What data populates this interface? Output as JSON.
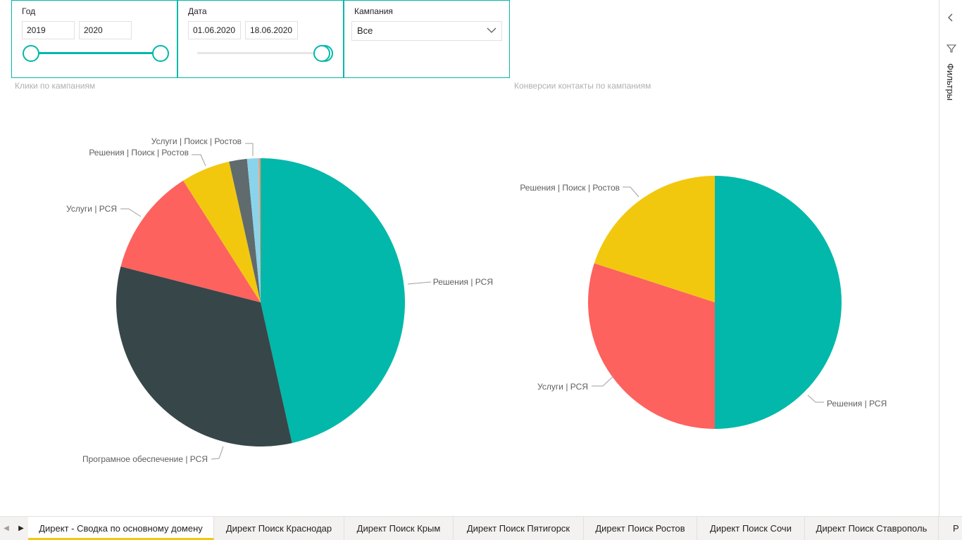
{
  "slicers": {
    "year": {
      "title": "Год",
      "from": "2019",
      "to": "2020"
    },
    "date": {
      "title": "Дата",
      "from": "01.06.2020",
      "to": "18.06.2020"
    },
    "campaign": {
      "title": "Кампания",
      "value": "Все"
    }
  },
  "filters_pane": {
    "label": "Фильтры"
  },
  "tabs": [
    {
      "label": "Директ - Сводка по основному домену",
      "active": true
    },
    {
      "label": "Директ Поиск Краснодар"
    },
    {
      "label": "Директ Поиск Крым"
    },
    {
      "label": "Директ Поиск Пятигорск"
    },
    {
      "label": "Директ Поиск Ростов"
    },
    {
      "label": "Директ Поиск Сочи"
    },
    {
      "label": "Директ Поиск Ставрополь"
    },
    {
      "label": "Р"
    }
  ],
  "colors": {
    "accent": "#01b8aa",
    "active_tab": "#f2c811"
  },
  "chart_data": [
    {
      "type": "pie",
      "title": "Клики по кампаниям",
      "slices": [
        {
          "label": "Решения | РСЯ",
          "value": 46.5,
          "color": "#01b8aa"
        },
        {
          "label": "Програмное обеспечение | РСЯ",
          "value": 32.5,
          "color": "#374649"
        },
        {
          "label": "Услуги | РСЯ",
          "value": 12.0,
          "color": "#fd625e"
        },
        {
          "label": "Решения | Поиск | Ростов",
          "value": 5.5,
          "color": "#f2c80f"
        },
        {
          "label": "",
          "value": 2.0,
          "color": "#5f6b6d"
        },
        {
          "label": "Услуги | Поиск | Ростов",
          "value": 1.3,
          "color": "#8ad4eb"
        },
        {
          "label": "",
          "value": 0.2,
          "color": "#fe9666"
        }
      ]
    },
    {
      "type": "pie",
      "title": "Конверсии контакты по кампаниям",
      "slices": [
        {
          "label": "Решения | РСЯ",
          "value": 50,
          "color": "#01b8aa"
        },
        {
          "label": "Услуги | РСЯ",
          "value": 30,
          "color": "#fd625e"
        },
        {
          "label": "Решения | Поиск | Ростов",
          "value": 20,
          "color": "#f2c80f"
        }
      ]
    }
  ]
}
